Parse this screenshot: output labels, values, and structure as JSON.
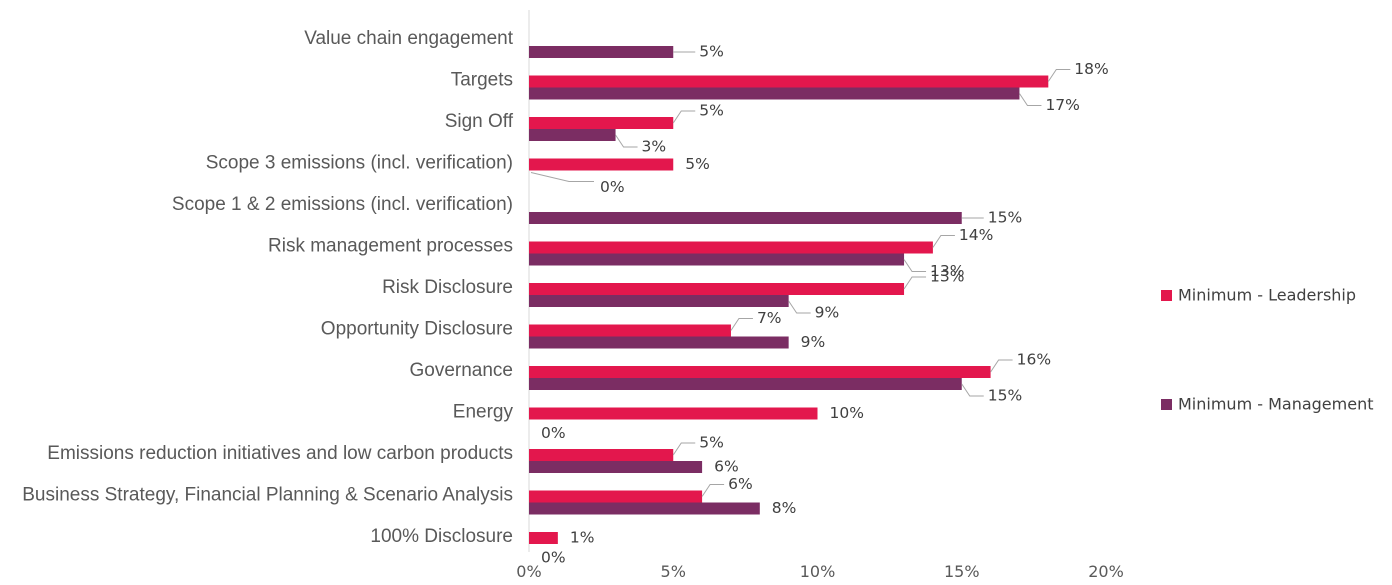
{
  "chart_data": {
    "type": "bar",
    "orientation": "horizontal",
    "categories": [
      "Value chain engagement",
      "Targets",
      "Sign Off",
      "Scope 3 emissions (incl. verification)",
      "Scope 1 & 2 emissions (incl. verification)",
      "Risk management processes",
      "Risk Disclosure",
      "Opportunity Disclosure",
      "Governance",
      "Energy",
      "Emissions reduction initiatives and low carbon products",
      "Business Strategy, Financial Planning & Scenario Analysis",
      "100% Disclosure"
    ],
    "series": [
      {
        "name": "Minimum - Leadership",
        "color": "#e3174d",
        "values": [
          null,
          18,
          5,
          5,
          null,
          14,
          13,
          7,
          16,
          10,
          5,
          6,
          1
        ],
        "labels": [
          "",
          "18%",
          "5%",
          "5%",
          "",
          "14%",
          "13%",
          "7%",
          "16%",
          "10%",
          "5%",
          "6%",
          "1%"
        ]
      },
      {
        "name": "Minimum - Management",
        "color": "#7b2d63",
        "values": [
          5,
          17,
          3,
          0,
          15,
          13,
          9,
          9,
          15,
          0,
          6,
          8,
          0
        ],
        "labels": [
          "5%",
          "17%",
          "3%",
          "0%",
          "15%",
          "13%",
          "9%",
          "9%",
          "15%",
          "0%",
          "6%",
          "8%",
          "0%"
        ]
      }
    ],
    "xlim": [
      0,
      20
    ],
    "xticks": [
      "0%",
      "5%",
      "10%",
      "15%",
      "20%"
    ],
    "legend_position": "right",
    "grid": false
  }
}
